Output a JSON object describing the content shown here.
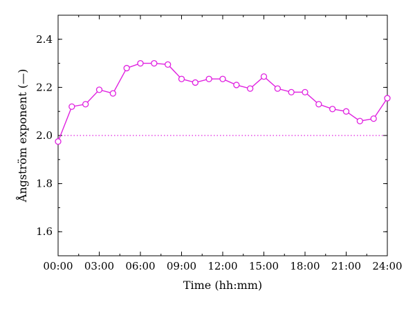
{
  "chart_data": {
    "type": "line",
    "title": "",
    "xlabel": "Time (hh:mm)",
    "ylabel": "Ångström exponent (—)",
    "xlim": [
      0,
      24
    ],
    "ylim": [
      1.5,
      2.5
    ],
    "x_ticks": [
      0,
      3,
      6,
      9,
      12,
      15,
      18,
      21,
      24
    ],
    "x_tick_labels": [
      "00:00",
      "03:00",
      "06:00",
      "09:00",
      "12:00",
      "15:00",
      "18:00",
      "21:00",
      "24:00"
    ],
    "y_ticks": [
      1.6,
      1.8,
      2.0,
      2.2,
      2.4
    ],
    "y_tick_labels": [
      "1.6",
      "1.8",
      "2.0",
      "2.2",
      "2.4"
    ],
    "grid": false,
    "reference_line": {
      "y": 2.0,
      "style": "dotted",
      "color": "#e020e0"
    },
    "series": [
      {
        "color": "#e020e0",
        "marker": "open-circle",
        "x": [
          0,
          1,
          2,
          3,
          4,
          5,
          6,
          7,
          8,
          9,
          10,
          11,
          12,
          13,
          14,
          15,
          16,
          17,
          18,
          19,
          20,
          21,
          22,
          23,
          24
        ],
        "y": [
          1.975,
          2.12,
          2.13,
          2.19,
          2.175,
          2.28,
          2.3,
          2.3,
          2.295,
          2.235,
          2.22,
          2.235,
          2.235,
          2.21,
          2.195,
          2.245,
          2.195,
          2.18,
          2.18,
          2.13,
          2.11,
          2.1,
          2.06,
          2.07,
          2.155
        ]
      }
    ]
  }
}
